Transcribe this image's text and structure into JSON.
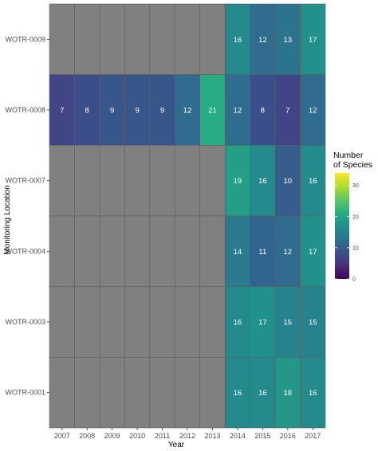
{
  "chart_data": {
    "type": "heatmap",
    "xlabel": "Year",
    "ylabel": "Monitoring Location",
    "x": [
      "2007",
      "2008",
      "2009",
      "2010",
      "2011",
      "2012",
      "2013",
      "2014",
      "2015",
      "2016",
      "2017"
    ],
    "y": [
      "WOTR-0009",
      "WOTR-0008",
      "WOTR-0007",
      "WOTR-0004",
      "WOTR-0003",
      "WOTR-0001"
    ],
    "values": [
      [
        null,
        null,
        null,
        null,
        null,
        null,
        null,
        16,
        12,
        13,
        17
      ],
      [
        7,
        8,
        9,
        9,
        9,
        12,
        21,
        12,
        8,
        7,
        12
      ],
      [
        null,
        null,
        null,
        null,
        null,
        null,
        null,
        19,
        16,
        10,
        16
      ],
      [
        null,
        null,
        null,
        null,
        null,
        null,
        null,
        14,
        11,
        12,
        17
      ],
      [
        null,
        null,
        null,
        null,
        null,
        null,
        null,
        16,
        17,
        15,
        15
      ],
      [
        null,
        null,
        null,
        null,
        null,
        null,
        null,
        16,
        16,
        18,
        16
      ]
    ],
    "legend": {
      "title_line1": "Number",
      "title_line2": "of Species",
      "ticks": [
        0,
        10,
        20,
        30
      ],
      "range": [
        0,
        34
      ],
      "placement": "right"
    },
    "colors": {
      "na_fill": "#808080",
      "cell_border": "#5f5f5f",
      "colormap": "viridis"
    }
  }
}
